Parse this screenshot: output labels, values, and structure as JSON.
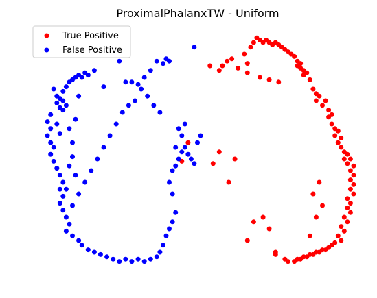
{
  "chart_data": {
    "type": "scatter",
    "title": "ProximalPhalanxTW - Uniform",
    "xlabel": "",
    "ylabel": "",
    "axes_visible": false,
    "grid": false,
    "legend_position": "top-left",
    "series": [
      {
        "name": "True Positive",
        "color": "#ff0000",
        "points": [
          [
            0.54,
            0.85
          ],
          [
            0.57,
            0.83
          ],
          [
            0.58,
            0.85
          ],
          [
            0.595,
            0.87
          ],
          [
            0.61,
            0.88
          ],
          [
            0.63,
            0.84
          ],
          [
            0.65,
            0.9
          ],
          [
            0.66,
            0.86
          ],
          [
            0.66,
            0.82
          ],
          [
            0.67,
            0.93
          ],
          [
            0.68,
            0.95
          ],
          [
            0.69,
            0.97
          ],
          [
            0.7,
            0.96
          ],
          [
            0.71,
            0.95
          ],
          [
            0.72,
            0.96
          ],
          [
            0.73,
            0.95
          ],
          [
            0.74,
            0.94
          ],
          [
            0.75,
            0.95
          ],
          [
            0.76,
            0.94
          ],
          [
            0.77,
            0.93
          ],
          [
            0.78,
            0.92
          ],
          [
            0.79,
            0.91
          ],
          [
            0.8,
            0.9
          ],
          [
            0.81,
            0.89
          ],
          [
            0.82,
            0.87
          ],
          [
            0.82,
            0.85
          ],
          [
            0.83,
            0.86
          ],
          [
            0.83,
            0.84
          ],
          [
            0.84,
            0.83
          ],
          [
            0.84,
            0.81
          ],
          [
            0.85,
            0.82
          ],
          [
            0.76,
            0.78
          ],
          [
            0.73,
            0.79
          ],
          [
            0.7,
            0.8
          ],
          [
            0.86,
            0.79
          ],
          [
            0.87,
            0.75
          ],
          [
            0.88,
            0.73
          ],
          [
            0.88,
            0.7
          ],
          [
            0.89,
            0.72
          ],
          [
            0.9,
            0.68
          ],
          [
            0.91,
            0.7
          ],
          [
            0.92,
            0.66
          ],
          [
            0.92,
            0.63
          ],
          [
            0.93,
            0.64
          ],
          [
            0.93,
            0.6
          ],
          [
            0.94,
            0.58
          ],
          [
            0.94,
            0.55
          ],
          [
            0.95,
            0.57
          ],
          [
            0.95,
            0.52
          ],
          [
            0.96,
            0.54
          ],
          [
            0.96,
            0.5
          ],
          [
            0.97,
            0.48
          ],
          [
            0.97,
            0.45
          ],
          [
            0.98,
            0.47
          ],
          [
            0.98,
            0.43
          ],
          [
            0.99,
            0.45
          ],
          [
            0.99,
            0.4
          ],
          [
            1.0,
            0.42
          ],
          [
            1.0,
            0.38
          ],
          [
            0.99,
            0.36
          ],
          [
            1.0,
            0.34
          ],
          [
            0.99,
            0.32
          ],
          [
            1.0,
            0.3
          ],
          [
            0.98,
            0.28
          ],
          [
            0.99,
            0.26
          ],
          [
            0.98,
            0.24
          ],
          [
            0.99,
            0.22
          ],
          [
            0.97,
            0.2
          ],
          [
            0.98,
            0.18
          ],
          [
            0.96,
            0.16
          ],
          [
            0.97,
            0.14
          ],
          [
            0.95,
            0.12
          ],
          [
            0.96,
            0.1
          ],
          [
            0.94,
            0.09
          ],
          [
            0.93,
            0.08
          ],
          [
            0.92,
            0.07
          ],
          [
            0.91,
            0.06
          ],
          [
            0.9,
            0.06
          ],
          [
            0.89,
            0.05
          ],
          [
            0.88,
            0.05
          ],
          [
            0.87,
            0.04
          ],
          [
            0.86,
            0.04
          ],
          [
            0.85,
            0.03
          ],
          [
            0.84,
            0.03
          ],
          [
            0.83,
            0.02
          ],
          [
            0.82,
            0.02
          ],
          [
            0.81,
            0.01
          ],
          [
            0.79,
            0.01
          ],
          [
            0.75,
            0.04
          ],
          [
            0.71,
            0.2
          ],
          [
            0.73,
            0.15
          ],
          [
            0.75,
            0.05
          ],
          [
            0.78,
            0.02
          ],
          [
            0.66,
            0.1
          ],
          [
            0.68,
            0.18
          ],
          [
            0.6,
            0.35
          ],
          [
            0.62,
            0.45
          ],
          [
            0.55,
            0.43
          ],
          [
            0.57,
            0.48
          ],
          [
            0.45,
            0.44
          ],
          [
            0.47,
            0.52
          ],
          [
            0.87,
            0.3
          ],
          [
            0.88,
            0.2
          ],
          [
            0.86,
            0.12
          ],
          [
            0.89,
            0.35
          ],
          [
            0.9,
            0.25
          ]
        ]
      },
      {
        "name": "False Positive",
        "color": "#0000ff",
        "points": [
          [
            0.04,
            0.75
          ],
          [
            0.05,
            0.72
          ],
          [
            0.05,
            0.69
          ],
          [
            0.06,
            0.71
          ],
          [
            0.06,
            0.67
          ],
          [
            0.07,
            0.7
          ],
          [
            0.07,
            0.74
          ],
          [
            0.08,
            0.76
          ],
          [
            0.09,
            0.78
          ],
          [
            0.1,
            0.79
          ],
          [
            0.11,
            0.8
          ],
          [
            0.12,
            0.81
          ],
          [
            0.13,
            0.8
          ],
          [
            0.14,
            0.82
          ],
          [
            0.15,
            0.81
          ],
          [
            0.17,
            0.83
          ],
          [
            0.2,
            0.76
          ],
          [
            0.25,
            0.87
          ],
          [
            0.27,
            0.78
          ],
          [
            0.29,
            0.78
          ],
          [
            0.31,
            0.77
          ],
          [
            0.33,
            0.8
          ],
          [
            0.35,
            0.83
          ],
          [
            0.37,
            0.87
          ],
          [
            0.39,
            0.86
          ],
          [
            0.4,
            0.88
          ],
          [
            0.41,
            0.87
          ],
          [
            0.49,
            0.93
          ],
          [
            0.03,
            0.64
          ],
          [
            0.02,
            0.61
          ],
          [
            0.03,
            0.58
          ],
          [
            0.02,
            0.55
          ],
          [
            0.03,
            0.52
          ],
          [
            0.04,
            0.5
          ],
          [
            0.03,
            0.47
          ],
          [
            0.04,
            0.44
          ],
          [
            0.05,
            0.41
          ],
          [
            0.06,
            0.38
          ],
          [
            0.07,
            0.35
          ],
          [
            0.06,
            0.32
          ],
          [
            0.07,
            0.29
          ],
          [
            0.06,
            0.26
          ],
          [
            0.07,
            0.23
          ],
          [
            0.08,
            0.2
          ],
          [
            0.09,
            0.17
          ],
          [
            0.08,
            0.14
          ],
          [
            0.1,
            0.12
          ],
          [
            0.12,
            0.1
          ],
          [
            0.13,
            0.08
          ],
          [
            0.15,
            0.06
          ],
          [
            0.17,
            0.05
          ],
          [
            0.19,
            0.04
          ],
          [
            0.21,
            0.03
          ],
          [
            0.23,
            0.02
          ],
          [
            0.25,
            0.01
          ],
          [
            0.27,
            0.02
          ],
          [
            0.29,
            0.01
          ],
          [
            0.31,
            0.02
          ],
          [
            0.33,
            0.01
          ],
          [
            0.35,
            0.02
          ],
          [
            0.37,
            0.03
          ],
          [
            0.38,
            0.05
          ],
          [
            0.39,
            0.08
          ],
          [
            0.4,
            0.12
          ],
          [
            0.41,
            0.15
          ],
          [
            0.42,
            0.18
          ],
          [
            0.43,
            0.22
          ],
          [
            0.42,
            0.3
          ],
          [
            0.41,
            0.35
          ],
          [
            0.42,
            0.4
          ],
          [
            0.43,
            0.42
          ],
          [
            0.44,
            0.45
          ],
          [
            0.45,
            0.48
          ],
          [
            0.46,
            0.5
          ],
          [
            0.47,
            0.47
          ],
          [
            0.48,
            0.45
          ],
          [
            0.49,
            0.43
          ],
          [
            0.5,
            0.52
          ],
          [
            0.51,
            0.55
          ],
          [
            0.43,
            0.5
          ],
          [
            0.45,
            0.55
          ],
          [
            0.44,
            0.58
          ],
          [
            0.46,
            0.6
          ],
          [
            0.38,
            0.65
          ],
          [
            0.36,
            0.68
          ],
          [
            0.34,
            0.72
          ],
          [
            0.32,
            0.75
          ],
          [
            0.3,
            0.7
          ],
          [
            0.28,
            0.68
          ],
          [
            0.26,
            0.65
          ],
          [
            0.24,
            0.6
          ],
          [
            0.22,
            0.55
          ],
          [
            0.2,
            0.5
          ],
          [
            0.18,
            0.45
          ],
          [
            0.16,
            0.4
          ],
          [
            0.14,
            0.35
          ],
          [
            0.12,
            0.3
          ],
          [
            0.1,
            0.25
          ],
          [
            0.08,
            0.32
          ],
          [
            0.09,
            0.42
          ],
          [
            0.1,
            0.52
          ],
          [
            0.11,
            0.62
          ],
          [
            0.12,
            0.72
          ],
          [
            0.05,
            0.6
          ],
          [
            0.06,
            0.56
          ],
          [
            0.07,
            0.66
          ],
          [
            0.08,
            0.68
          ],
          [
            0.09,
            0.58
          ],
          [
            0.1,
            0.46
          ],
          [
            0.11,
            0.38
          ]
        ]
      }
    ]
  }
}
